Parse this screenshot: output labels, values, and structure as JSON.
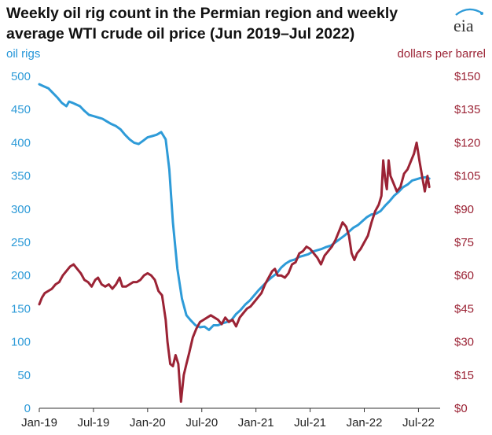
{
  "title_lines": [
    "Weekly oil rig count in the Permian region and weekly",
    "average WTI crude oil price (Jun 2019–Jul 2022)"
  ],
  "logo_text": "eia",
  "colors": {
    "rigs": "#2e9bd8",
    "price": "#9b2335",
    "axis": "#333333",
    "text": "#222222"
  },
  "chart_data": {
    "type": "line",
    "title": "Weekly oil rig count in the Permian region and weekly average WTI crude oil price (Jun 2019–Jul 2022)",
    "x_tick_labels": [
      "Jan-19",
      "Jul-19",
      "Jan-20",
      "Jul-20",
      "Jan-21",
      "Jul-21",
      "Jan-22",
      "Jul-22"
    ],
    "x_tick_positions": [
      0,
      6,
      12,
      18,
      24,
      30,
      36,
      42
    ],
    "xlim": [
      0,
      44.4
    ],
    "y_left": {
      "label": "oil rigs",
      "range": [
        0,
        500
      ],
      "ticks": [
        0,
        50,
        100,
        150,
        200,
        250,
        300,
        350,
        400,
        450,
        500
      ]
    },
    "y_right": {
      "label": "dollars per barrel",
      "range": [
        0,
        150
      ],
      "ticks": [
        "$0",
        "$15",
        "$30",
        "$45",
        "$60",
        "$75",
        "$90",
        "$105",
        "$120",
        "$135",
        "$150"
      ]
    },
    "grid": false,
    "series": [
      {
        "name": "oil rigs",
        "axis": "left",
        "x_unit": "months since Jan-19",
        "points": [
          [
            0,
            488
          ],
          [
            0.5,
            485
          ],
          [
            1,
            482
          ],
          [
            1.5,
            475
          ],
          [
            2,
            468
          ],
          [
            2.5,
            460
          ],
          [
            3,
            455
          ],
          [
            3.3,
            462
          ],
          [
            3.7,
            460
          ],
          [
            4,
            458
          ],
          [
            4.5,
            455
          ],
          [
            5,
            448
          ],
          [
            5.5,
            442
          ],
          [
            6,
            440
          ],
          [
            6.5,
            438
          ],
          [
            7,
            436
          ],
          [
            7.5,
            432
          ],
          [
            8,
            428
          ],
          [
            8.5,
            425
          ],
          [
            9,
            420
          ],
          [
            9.5,
            412
          ],
          [
            10,
            405
          ],
          [
            10.5,
            400
          ],
          [
            11,
            398
          ],
          [
            11.5,
            403
          ],
          [
            12,
            408
          ],
          [
            12.5,
            410
          ],
          [
            13,
            412
          ],
          [
            13.5,
            416
          ],
          [
            14,
            405
          ],
          [
            14.4,
            360
          ],
          [
            14.8,
            280
          ],
          [
            15.3,
            210
          ],
          [
            15.8,
            165
          ],
          [
            16.3,
            140
          ],
          [
            16.8,
            132
          ],
          [
            17.3,
            125
          ],
          [
            17.8,
            122
          ],
          [
            18.3,
            123
          ],
          [
            18.8,
            118
          ],
          [
            19.3,
            125
          ],
          [
            19.8,
            125
          ],
          [
            20.3,
            128
          ],
          [
            20.8,
            130
          ],
          [
            21.3,
            133
          ],
          [
            21.8,
            142
          ],
          [
            22.3,
            148
          ],
          [
            22.8,
            156
          ],
          [
            23.3,
            162
          ],
          [
            23.8,
            170
          ],
          [
            24.3,
            178
          ],
          [
            24.8,
            185
          ],
          [
            25.3,
            192
          ],
          [
            25.8,
            198
          ],
          [
            26.3,
            203
          ],
          [
            26.8,
            212
          ],
          [
            27.3,
            218
          ],
          [
            27.8,
            222
          ],
          [
            28.3,
            224
          ],
          [
            28.8,
            228
          ],
          [
            29.3,
            230
          ],
          [
            29.8,
            232
          ],
          [
            30.3,
            236
          ],
          [
            30.8,
            238
          ],
          [
            31.3,
            240
          ],
          [
            31.8,
            243
          ],
          [
            32.3,
            245
          ],
          [
            32.8,
            250
          ],
          [
            33.3,
            255
          ],
          [
            33.8,
            260
          ],
          [
            34.3,
            266
          ],
          [
            34.8,
            272
          ],
          [
            35.3,
            276
          ],
          [
            35.8,
            282
          ],
          [
            36.3,
            288
          ],
          [
            36.8,
            292
          ],
          [
            37.3,
            293
          ],
          [
            37.8,
            297
          ],
          [
            38.3,
            305
          ],
          [
            38.8,
            312
          ],
          [
            39.3,
            320
          ],
          [
            39.8,
            326
          ],
          [
            40.3,
            333
          ],
          [
            40.8,
            337
          ],
          [
            41.3,
            343
          ],
          [
            41.8,
            345
          ],
          [
            42.3,
            347
          ],
          [
            42.8,
            348
          ],
          [
            43.2,
            346
          ]
        ]
      },
      {
        "name": "dollars per barrel",
        "axis": "right",
        "x_unit": "months since Jan-19",
        "points": [
          [
            0,
            47
          ],
          [
            0.3,
            50
          ],
          [
            0.6,
            52
          ],
          [
            1,
            53
          ],
          [
            1.4,
            54
          ],
          [
            1.8,
            56
          ],
          [
            2.2,
            57
          ],
          [
            2.6,
            60
          ],
          [
            3,
            62
          ],
          [
            3.4,
            64
          ],
          [
            3.8,
            65
          ],
          [
            4.2,
            63
          ],
          [
            4.6,
            61
          ],
          [
            5,
            58
          ],
          [
            5.4,
            57
          ],
          [
            5.8,
            55
          ],
          [
            6.2,
            58
          ],
          [
            6.5,
            59
          ],
          [
            6.9,
            56
          ],
          [
            7.3,
            55
          ],
          [
            7.7,
            56
          ],
          [
            8.1,
            54
          ],
          [
            8.5,
            56
          ],
          [
            8.9,
            59
          ],
          [
            9.2,
            55
          ],
          [
            9.6,
            55
          ],
          [
            10,
            56
          ],
          [
            10.4,
            57
          ],
          [
            10.8,
            57
          ],
          [
            11.2,
            58
          ],
          [
            11.6,
            60
          ],
          [
            12,
            61
          ],
          [
            12.4,
            60
          ],
          [
            12.8,
            58
          ],
          [
            13.2,
            53
          ],
          [
            13.6,
            51
          ],
          [
            14,
            40
          ],
          [
            14.2,
            30
          ],
          [
            14.5,
            20
          ],
          [
            14.8,
            19
          ],
          [
            15.1,
            24
          ],
          [
            15.4,
            20
          ],
          [
            15.7,
            3
          ],
          [
            16,
            15
          ],
          [
            16.3,
            20
          ],
          [
            16.6,
            25
          ],
          [
            17,
            32
          ],
          [
            17.4,
            36
          ],
          [
            17.8,
            39
          ],
          [
            18.2,
            40
          ],
          [
            18.6,
            41
          ],
          [
            19,
            42
          ],
          [
            19.4,
            41
          ],
          [
            19.8,
            40
          ],
          [
            20.2,
            38
          ],
          [
            20.6,
            41
          ],
          [
            21,
            39
          ],
          [
            21.4,
            40
          ],
          [
            21.8,
            37
          ],
          [
            22.2,
            41
          ],
          [
            22.6,
            43
          ],
          [
            23,
            45
          ],
          [
            23.4,
            46
          ],
          [
            23.8,
            48
          ],
          [
            24.2,
            50
          ],
          [
            24.6,
            52
          ],
          [
            25,
            56
          ],
          [
            25.4,
            59
          ],
          [
            25.8,
            62
          ],
          [
            26.1,
            63
          ],
          [
            26.4,
            60
          ],
          [
            26.8,
            60
          ],
          [
            27.2,
            59
          ],
          [
            27.6,
            61
          ],
          [
            28,
            65
          ],
          [
            28.4,
            66
          ],
          [
            28.8,
            70
          ],
          [
            29.2,
            71
          ],
          [
            29.6,
            73
          ],
          [
            30,
            72
          ],
          [
            30.4,
            70
          ],
          [
            30.8,
            68
          ],
          [
            31.2,
            65
          ],
          [
            31.6,
            69
          ],
          [
            32,
            71
          ],
          [
            32.4,
            73
          ],
          [
            32.8,
            76
          ],
          [
            33.2,
            80
          ],
          [
            33.6,
            84
          ],
          [
            34,
            82
          ],
          [
            34.3,
            78
          ],
          [
            34.6,
            70
          ],
          [
            34.9,
            67
          ],
          [
            35.2,
            70
          ],
          [
            35.6,
            72
          ],
          [
            36,
            75
          ],
          [
            36.4,
            78
          ],
          [
            36.8,
            84
          ],
          [
            37.2,
            89
          ],
          [
            37.6,
            92
          ],
          [
            37.9,
            96
          ],
          [
            38.1,
            112
          ],
          [
            38.3,
            104
          ],
          [
            38.5,
            99
          ],
          [
            38.7,
            112
          ],
          [
            38.9,
            105
          ],
          [
            39.2,
            102
          ],
          [
            39.6,
            98
          ],
          [
            40,
            100
          ],
          [
            40.4,
            106
          ],
          [
            40.8,
            108
          ],
          [
            41.2,
            112
          ],
          [
            41.5,
            115
          ],
          [
            41.8,
            120
          ],
          [
            42.1,
            112
          ],
          [
            42.4,
            105
          ],
          [
            42.7,
            98
          ],
          [
            43,
            105
          ],
          [
            43.2,
            100
          ]
        ]
      }
    ]
  }
}
